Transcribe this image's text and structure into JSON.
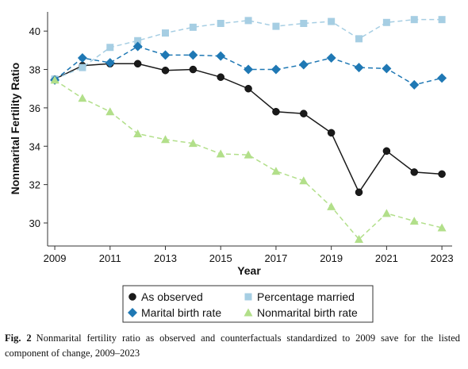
{
  "chart_data": {
    "type": "line",
    "y_label": "Nonmarital Fertility Ratio",
    "x_label": "Year",
    "x": [
      2009,
      2010,
      2011,
      2012,
      2013,
      2014,
      2015,
      2016,
      2017,
      2018,
      2019,
      2020,
      2021,
      2022,
      2023
    ],
    "xlim": [
      2008.74,
      2023.37
    ],
    "xticks": [
      2009,
      2011,
      2013,
      2015,
      2017,
      2019,
      2021,
      2023
    ],
    "ylim": [
      28.8,
      41.0
    ],
    "yticks": [
      30,
      32,
      34,
      36,
      38,
      40
    ],
    "series": [
      {
        "name": "As observed",
        "color": "#1a1a1a",
        "marker": "circle",
        "dashed": false,
        "values": [
          37.5,
          38.2,
          38.3,
          38.3,
          37.95,
          38.0,
          37.6,
          37.0,
          35.8,
          35.7,
          34.7,
          31.6,
          33.75,
          32.65,
          32.55
        ]
      },
      {
        "name": "Percentage married",
        "color": "#a6cee3",
        "marker": "square",
        "dashed": true,
        "values": [
          37.5,
          38.1,
          39.15,
          39.5,
          39.9,
          40.2,
          40.4,
          40.55,
          40.25,
          40.4,
          40.5,
          39.6,
          40.45,
          40.6,
          40.6
        ]
      },
      {
        "name": "Marital birth rate",
        "color": "#1f78b4",
        "marker": "diamond",
        "dashed": true,
        "values": [
          37.45,
          38.6,
          38.35,
          39.2,
          38.75,
          38.75,
          38.7,
          38.0,
          38.0,
          38.25,
          38.6,
          38.1,
          38.05,
          37.2,
          37.55
        ]
      },
      {
        "name": "Nonmarital birth rate",
        "color": "#b2df8a",
        "marker": "triangle",
        "dashed": true,
        "values": [
          37.45,
          36.5,
          35.8,
          34.65,
          34.35,
          34.15,
          33.6,
          33.55,
          32.7,
          32.2,
          30.85,
          29.15,
          30.5,
          30.1,
          29.75
        ]
      }
    ],
    "caption_label": "Fig. 2",
    "caption": "Nonmarital fertility ratio as observed and counterfactuals standardized to 2009 save for the listed component of change, 2009–2023"
  }
}
